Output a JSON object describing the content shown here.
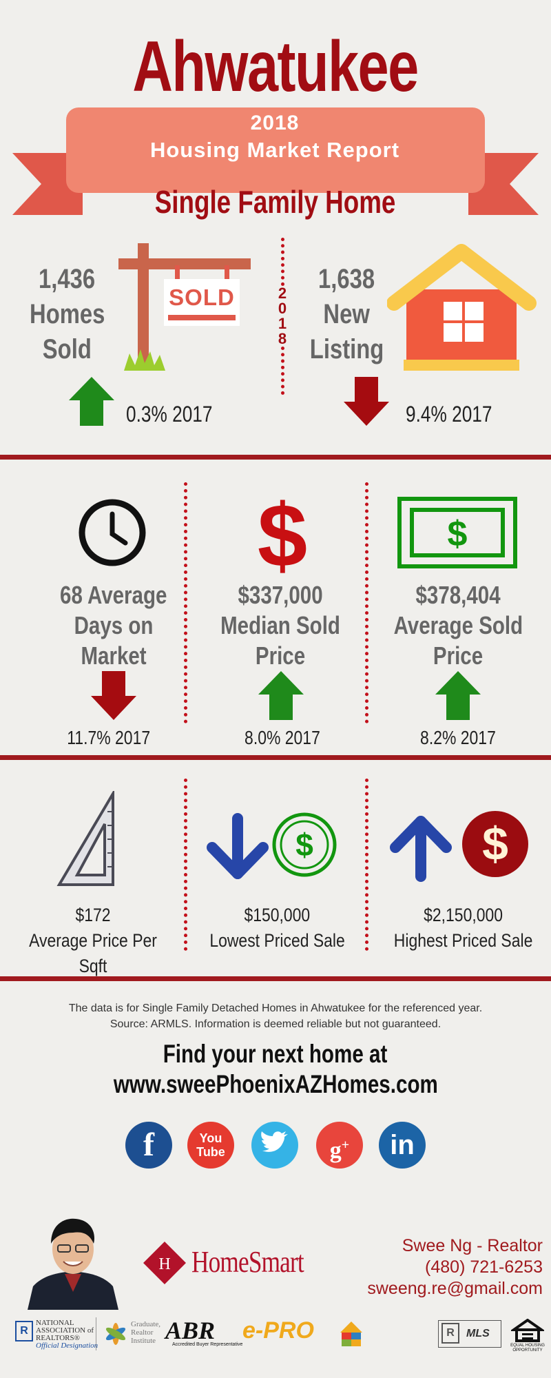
{
  "header": {
    "title": "Ahwatukee",
    "banner_year": "2018",
    "banner_title": "Housing Market Report",
    "subtitle": "Single Family Home"
  },
  "top_stats": {
    "sold": {
      "line1": "1,436",
      "line2": "Homes",
      "line3": "Sold",
      "sign_text": "SOLD",
      "year_label": "2018",
      "change": "0.3% 2017",
      "direction": "up"
    },
    "listing": {
      "line1": "1,638",
      "line2": "New",
      "line3": "Listing",
      "change": "9.4% 2017",
      "direction": "down"
    }
  },
  "middle_stats": [
    {
      "lines": [
        "68 Average",
        "Days on",
        "Market"
      ],
      "change": "11.7% 2017",
      "direction": "down",
      "icon": "clock-icon"
    },
    {
      "lines": [
        "$337,000",
        "Median Sold",
        "Price"
      ],
      "change": "8.0% 2017",
      "direction": "up",
      "icon": "dollar-sign-icon"
    },
    {
      "lines": [
        "$378,404",
        "Average Sold",
        "Price"
      ],
      "change": "8.2% 2017",
      "direction": "up",
      "icon": "dollar-bill-icon"
    }
  ],
  "lower_stats": [
    {
      "value": "$172",
      "label": "Average Price Per Sqft",
      "icon": "set-square-icon"
    },
    {
      "value": "$150,000",
      "label": "Lowest Priced Sale",
      "icon": "down-dollar-icon"
    },
    {
      "value": "$2,150,000",
      "label": "Highest Priced Sale",
      "icon": "up-dollar-icon"
    }
  ],
  "disclaimer": {
    "line1": "The data is for Single Family Detached Homes in Ahwatukee for the referenced year.",
    "line2": "Source: ARMLS. Information is deemed reliable but not guaranteed."
  },
  "cta": {
    "line1": "Find your next home at",
    "line2": "www.sweePhoenixAZHomes.com"
  },
  "social": [
    {
      "name": "facebook",
      "glyph": "f",
      "color": "#1d4f91"
    },
    {
      "name": "youtube",
      "glyph": "You\nTube",
      "color": "#e53a2f"
    },
    {
      "name": "twitter",
      "glyph": "t",
      "color": "#35b3e6"
    },
    {
      "name": "google-plus",
      "glyph": "g+",
      "color": "#e8453c"
    },
    {
      "name": "linkedin",
      "glyph": "in",
      "color": "#1c64a6"
    }
  ],
  "agent": {
    "brand": "HomeSmart",
    "name_title": "Swee Ng - Realtor",
    "phone": "(480) 721-6253",
    "email": "sweeng.re@gmail.com"
  },
  "footer_logos": {
    "nar_line1": "NATIONAL",
    "nar_line2": "ASSOCIATION of",
    "nar_line3": "REALTORS®",
    "nar_line4": "Official Designation",
    "gri_line1": "Graduate,",
    "gri_line2": "Realtor",
    "gri_line3": "Institute",
    "abr": "ABR",
    "abr_sub": "Accredited Buyer Representative",
    "epro": "e-PRO",
    "mls": "MLS",
    "equal_housing": "EQUAL HOUSING OPPORTUNITY"
  },
  "colors": {
    "brand_red": "#a10d13",
    "up_green": "#1f8a1b",
    "down_red": "#a50c10",
    "banner": "#f08670"
  }
}
